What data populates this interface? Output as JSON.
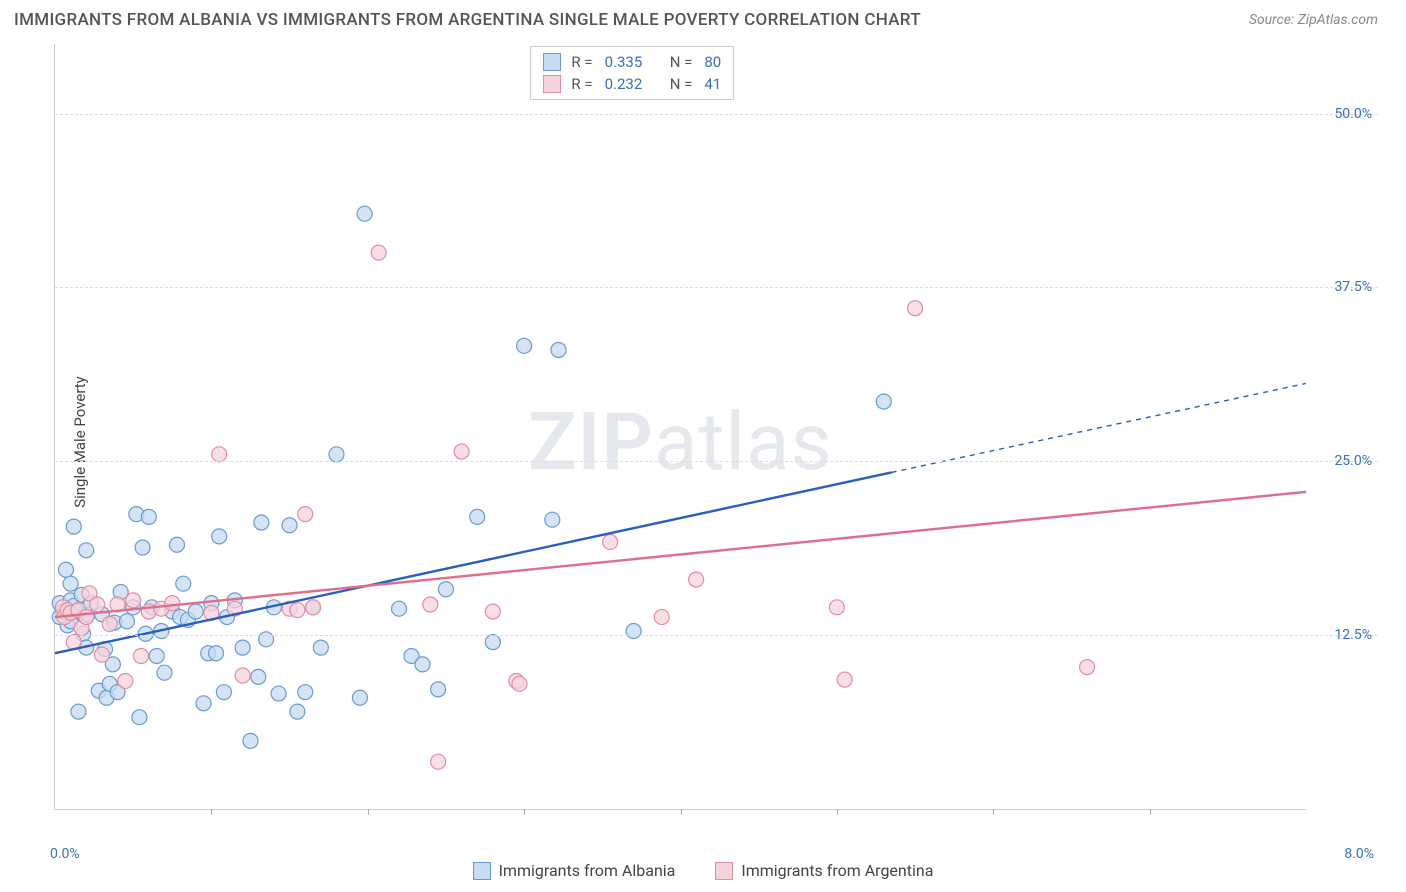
{
  "title": "IMMIGRANTS FROM ALBANIA VS IMMIGRANTS FROM ARGENTINA SINGLE MALE POVERTY CORRELATION CHART",
  "source": "Source: ZipAtlas.com",
  "watermark_a": "ZIP",
  "watermark_b": "atlas",
  "y_axis_label": "Single Male Poverty",
  "chart": {
    "type": "scatter",
    "xlim": [
      0.0,
      8.0
    ],
    "ylim": [
      0.0,
      55.0
    ],
    "xlim_labels": {
      "min": "0.0%",
      "max": "8.0%"
    },
    "xtick_positions": [
      1.0,
      2.0,
      3.0,
      4.0,
      5.0,
      6.0,
      7.0
    ],
    "ytick_positions": [
      12.5,
      25.0,
      37.5,
      50.0
    ],
    "ytick_labels": [
      "12.5%",
      "25.0%",
      "37.5%",
      "50.0%"
    ],
    "grid_color": "#dddddd",
    "background_color": "#ffffff",
    "marker_radius": 7.5,
    "marker_stroke_width": 1.2,
    "line_width": 2.4,
    "label_fontsize": 14,
    "label_color": "#3b6fb6",
    "series": [
      {
        "name": "Immigrants from Albania",
        "fill": "#c7dbf2",
        "stroke": "#6a9ad4",
        "line_color": "#2a5fbf",
        "R": "0.335",
        "N": "80",
        "reg_line": {
          "x1": 0.0,
          "y1": 11.2,
          "x2": 5.35,
          "y2": 24.2,
          "dash_x2": 8.0,
          "dash_y2": 30.6
        },
        "points": [
          [
            0.03,
            14.8
          ],
          [
            0.05,
            14.2
          ],
          [
            0.07,
            17.2
          ],
          [
            0.08,
            14.0
          ],
          [
            0.08,
            13.2
          ],
          [
            0.1,
            15.0
          ],
          [
            0.1,
            13.5
          ],
          [
            0.1,
            16.2
          ],
          [
            0.12,
            20.3
          ],
          [
            0.12,
            14.6
          ],
          [
            0.14,
            14.2
          ],
          [
            0.15,
            7.0
          ],
          [
            0.17,
            15.4
          ],
          [
            0.18,
            12.6
          ],
          [
            0.2,
            11.6
          ],
          [
            0.2,
            18.6
          ],
          [
            0.21,
            14.0
          ],
          [
            0.23,
            14.8
          ],
          [
            0.28,
            8.5
          ],
          [
            0.3,
            14.0
          ],
          [
            0.32,
            11.5
          ],
          [
            0.33,
            8.0
          ],
          [
            0.35,
            9.0
          ],
          [
            0.37,
            10.4
          ],
          [
            0.38,
            13.4
          ],
          [
            0.4,
            8.4
          ],
          [
            0.42,
            15.6
          ],
          [
            0.46,
            13.5
          ],
          [
            0.5,
            14.5
          ],
          [
            0.52,
            21.2
          ],
          [
            0.54,
            6.6
          ],
          [
            0.56,
            18.8
          ],
          [
            0.58,
            12.6
          ],
          [
            0.6,
            21.0
          ],
          [
            0.62,
            14.5
          ],
          [
            0.65,
            11.0
          ],
          [
            0.68,
            12.8
          ],
          [
            0.7,
            9.8
          ],
          [
            0.75,
            14.2
          ],
          [
            0.78,
            19.0
          ],
          [
            0.8,
            13.8
          ],
          [
            0.82,
            16.2
          ],
          [
            0.85,
            13.6
          ],
          [
            0.9,
            14.2
          ],
          [
            0.95,
            7.6
          ],
          [
            0.98,
            11.2
          ],
          [
            1.0,
            14.8
          ],
          [
            1.03,
            11.2
          ],
          [
            1.05,
            19.6
          ],
          [
            1.08,
            8.4
          ],
          [
            1.1,
            13.8
          ],
          [
            1.15,
            15.0
          ],
          [
            1.2,
            11.6
          ],
          [
            1.25,
            4.9
          ],
          [
            1.3,
            9.5
          ],
          [
            1.32,
            20.6
          ],
          [
            1.35,
            12.2
          ],
          [
            1.4,
            14.5
          ],
          [
            1.43,
            8.3
          ],
          [
            1.5,
            20.4
          ],
          [
            1.55,
            7.0
          ],
          [
            1.6,
            8.4
          ],
          [
            1.65,
            14.5
          ],
          [
            1.7,
            11.6
          ],
          [
            1.8,
            25.5
          ],
          [
            1.95,
            8.0
          ],
          [
            1.98,
            42.8
          ],
          [
            2.2,
            14.4
          ],
          [
            2.28,
            11.0
          ],
          [
            2.35,
            10.4
          ],
          [
            2.45,
            8.6
          ],
          [
            2.5,
            15.8
          ],
          [
            2.7,
            21.0
          ],
          [
            2.8,
            12.0
          ],
          [
            3.0,
            33.3
          ],
          [
            3.18,
            20.8
          ],
          [
            3.22,
            33.0
          ],
          [
            3.7,
            12.8
          ],
          [
            5.3,
            29.3
          ],
          [
            0.03,
            13.8
          ]
        ]
      },
      {
        "name": "Immigrants from Argentina",
        "fill": "#f6d3dc",
        "stroke": "#e48ca2",
        "line_color": "#de6e89",
        "R": "0.232",
        "N": "41",
        "reg_line": {
          "x1": 0.0,
          "y1": 13.8,
          "x2": 8.0,
          "y2": 22.8
        },
        "points": [
          [
            0.05,
            14.5
          ],
          [
            0.06,
            13.8
          ],
          [
            0.08,
            14.3
          ],
          [
            0.1,
            14.1
          ],
          [
            0.12,
            12.0
          ],
          [
            0.15,
            14.3
          ],
          [
            0.17,
            13.0
          ],
          [
            0.2,
            13.8
          ],
          [
            0.22,
            15.5
          ],
          [
            0.27,
            14.7
          ],
          [
            0.3,
            11.1
          ],
          [
            0.35,
            13.3
          ],
          [
            0.4,
            14.7
          ],
          [
            0.45,
            9.2
          ],
          [
            0.5,
            15.0
          ],
          [
            0.55,
            11.0
          ],
          [
            0.6,
            14.2
          ],
          [
            0.68,
            14.4
          ],
          [
            0.75,
            14.8
          ],
          [
            1.0,
            14.1
          ],
          [
            1.05,
            25.5
          ],
          [
            1.15,
            14.4
          ],
          [
            1.2,
            9.6
          ],
          [
            1.5,
            14.4
          ],
          [
            1.55,
            14.3
          ],
          [
            1.6,
            21.2
          ],
          [
            1.65,
            14.5
          ],
          [
            2.07,
            40.0
          ],
          [
            2.4,
            14.7
          ],
          [
            2.45,
            3.4
          ],
          [
            2.6,
            25.7
          ],
          [
            2.8,
            14.2
          ],
          [
            2.95,
            9.2
          ],
          [
            2.97,
            9.0
          ],
          [
            3.55,
            19.2
          ],
          [
            3.88,
            13.8
          ],
          [
            4.1,
            16.5
          ],
          [
            5.0,
            14.5
          ],
          [
            5.05,
            9.3
          ],
          [
            5.5,
            36.0
          ],
          [
            6.6,
            10.2
          ]
        ]
      }
    ]
  },
  "legend_top": {
    "r_label": "R =",
    "n_label": "N ="
  },
  "legend_bottom": {
    "s1": "Immigrants from Albania",
    "s2": "Immigrants from Argentina"
  }
}
